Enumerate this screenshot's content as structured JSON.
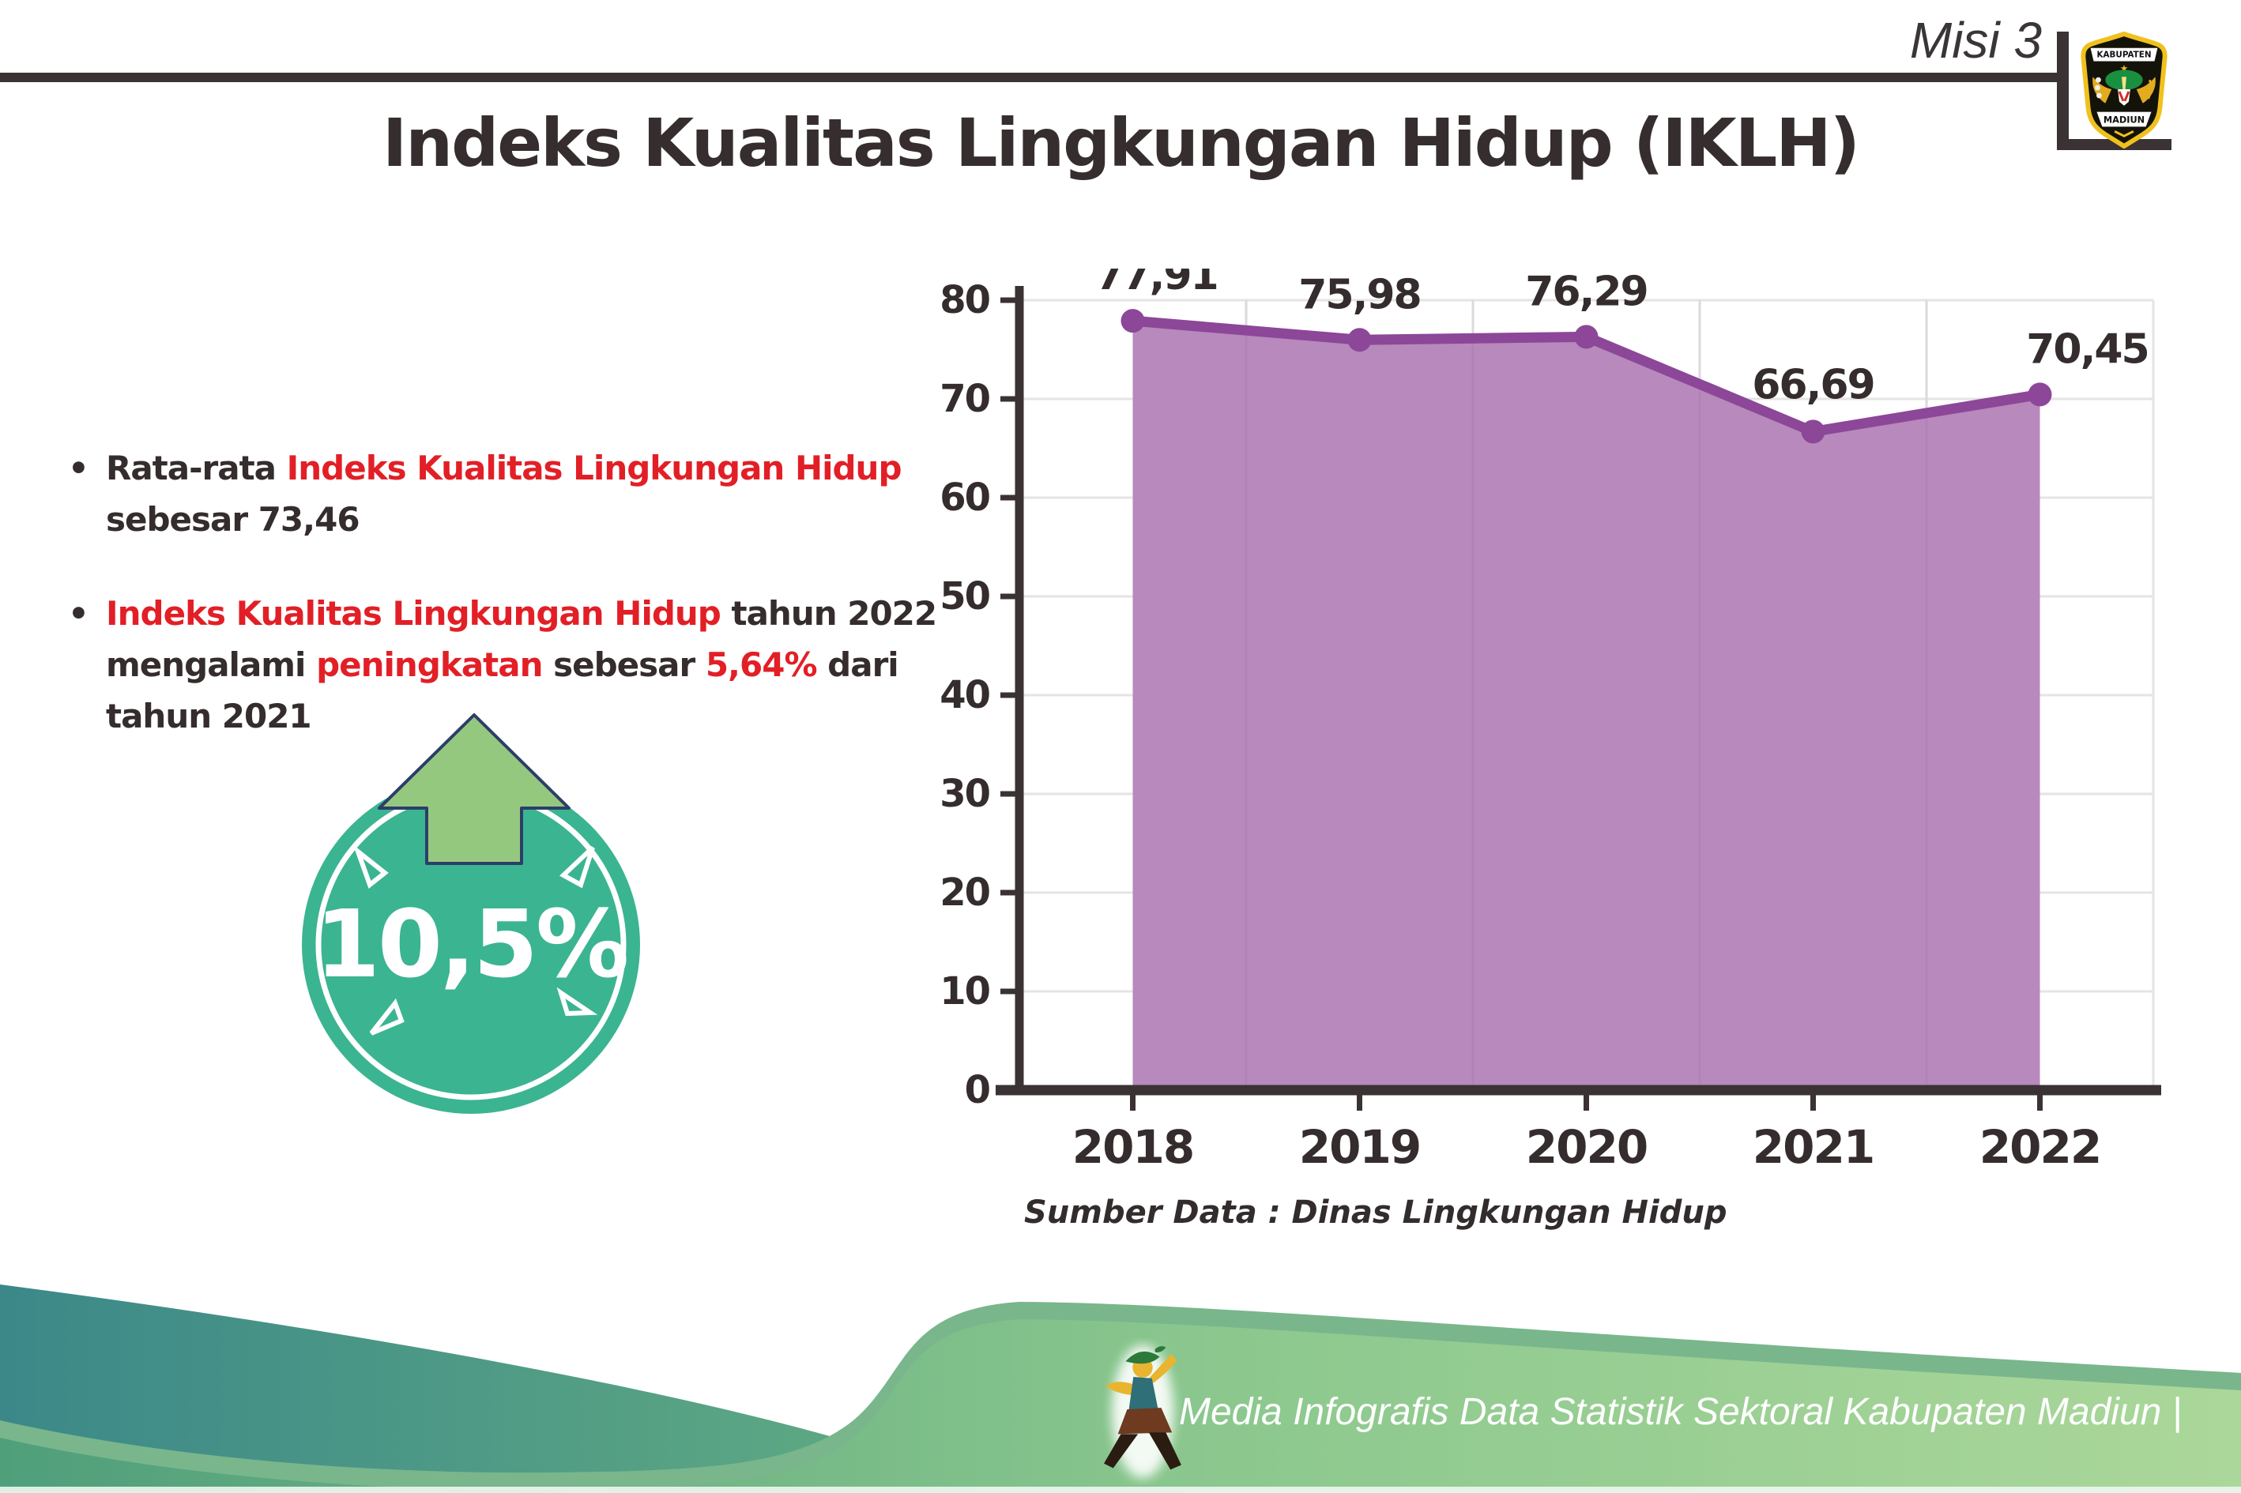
{
  "header": {
    "misi_label": "Misi 3",
    "title": "Indeks Kualitas Lingkungan Hidup (IKLH)",
    "logo": {
      "top_text": "KABUPATEN",
      "bottom_text": "MADIUN"
    }
  },
  "bullet_glyph": "•",
  "bullets": [
    {
      "lines": [
        [
          {
            "t": "Rata-rata ",
            "em": false
          },
          {
            "t": "Indeks Kualitas Lingkungan Hidup",
            "em": true
          }
        ],
        [
          {
            "t": "sebesar 73,46",
            "em": false
          }
        ]
      ]
    },
    {
      "lines": [
        [
          {
            "t": "Indeks Kualitas Lingkungan Hidup",
            "em": true
          },
          {
            "t": " tahun 2022",
            "em": false
          }
        ],
        [
          {
            "t": "mengalami ",
            "em": false
          },
          {
            "t": "peningkatan",
            "em": true
          },
          {
            "t": " sebesar ",
            "em": false
          },
          {
            "t": "5,64%",
            "em": true
          },
          {
            "t": " dari",
            "em": false
          }
        ],
        [
          {
            "t": "tahun 2021",
            "em": false
          }
        ]
      ]
    }
  ],
  "badge": {
    "value": "10,5%",
    "direction": "up"
  },
  "chart_data": {
    "type": "area",
    "categories": [
      "2018",
      "2019",
      "2020",
      "2021",
      "2022"
    ],
    "values": [
      77.91,
      75.98,
      76.29,
      66.69,
      70.45
    ],
    "value_labels": [
      "77,91",
      "75,98",
      "76,29",
      "66,69",
      "70,45"
    ],
    "title": "",
    "xlabel": "",
    "ylabel": "",
    "ylim": [
      0,
      85
    ],
    "yticks": [
      0,
      10,
      20,
      30,
      40,
      50,
      60,
      70,
      80
    ],
    "grid": true,
    "legend": false,
    "colors": {
      "fill": "#b789bc",
      "line": "#8c4798",
      "axis": "#3a3233",
      "text": "#342c2d",
      "gridline": "#e6e3e4"
    },
    "source_note": "Sumber Data : Dinas Lingkungan Hidup"
  },
  "footer": {
    "caption": "Media Infografis Data Statistik Sektoral Kabupaten Madiun |"
  },
  "colors": {
    "accent_red": "#e21f26",
    "badge_teal": "#3bb491",
    "arrow_green": "#95c87f",
    "arrow_outline": "#2c3e68",
    "footer_rim": "#79b68c",
    "footer_teal": "#3c8889",
    "footer_green_light": "#abd79a"
  }
}
